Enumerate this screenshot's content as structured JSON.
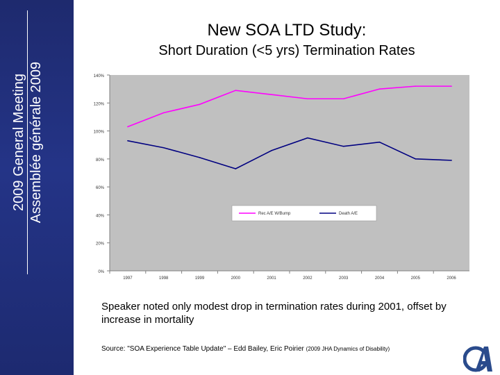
{
  "sidebar": {
    "line1": "2009 General Meeting",
    "line2": "Assemblée générale 2009"
  },
  "slide": {
    "title": "New SOA LTD Study:",
    "subtitle": "Short Duration (<5 yrs) Termination Rates",
    "note": "Speaker noted only modest drop in termination rates during 2001, offset by increase in mortality",
    "source_main": "Source: \"SOA Experience Table Update\" – Edd Bailey, Eric Poirier",
    "source_small": "(2009 JHA Dynamics of Disability)"
  },
  "colors": {
    "sidebar": "#1e2a6e",
    "plot_bg": "#c0c0c0",
    "series1": "#ff00ff",
    "series2": "#000080"
  },
  "chart_data": {
    "type": "line",
    "categories": [
      "1997",
      "1998",
      "1999",
      "2000",
      "2001",
      "2002",
      "2003",
      "2004",
      "2005",
      "2006"
    ],
    "ylim": [
      0,
      140
    ],
    "yticks": [
      "0%",
      "20%",
      "40%",
      "60%",
      "80%",
      "100%",
      "120%",
      "140%"
    ],
    "grid": false,
    "legend": "inside-center",
    "series": [
      {
        "name": "Rec A/E W/Bump",
        "values": [
          103,
          113,
          119,
          129,
          126,
          123,
          123,
          130,
          132,
          132
        ]
      },
      {
        "name": "Death A/E",
        "values": [
          93,
          88,
          81,
          73,
          86,
          95,
          89,
          92,
          80,
          79
        ]
      }
    ]
  }
}
